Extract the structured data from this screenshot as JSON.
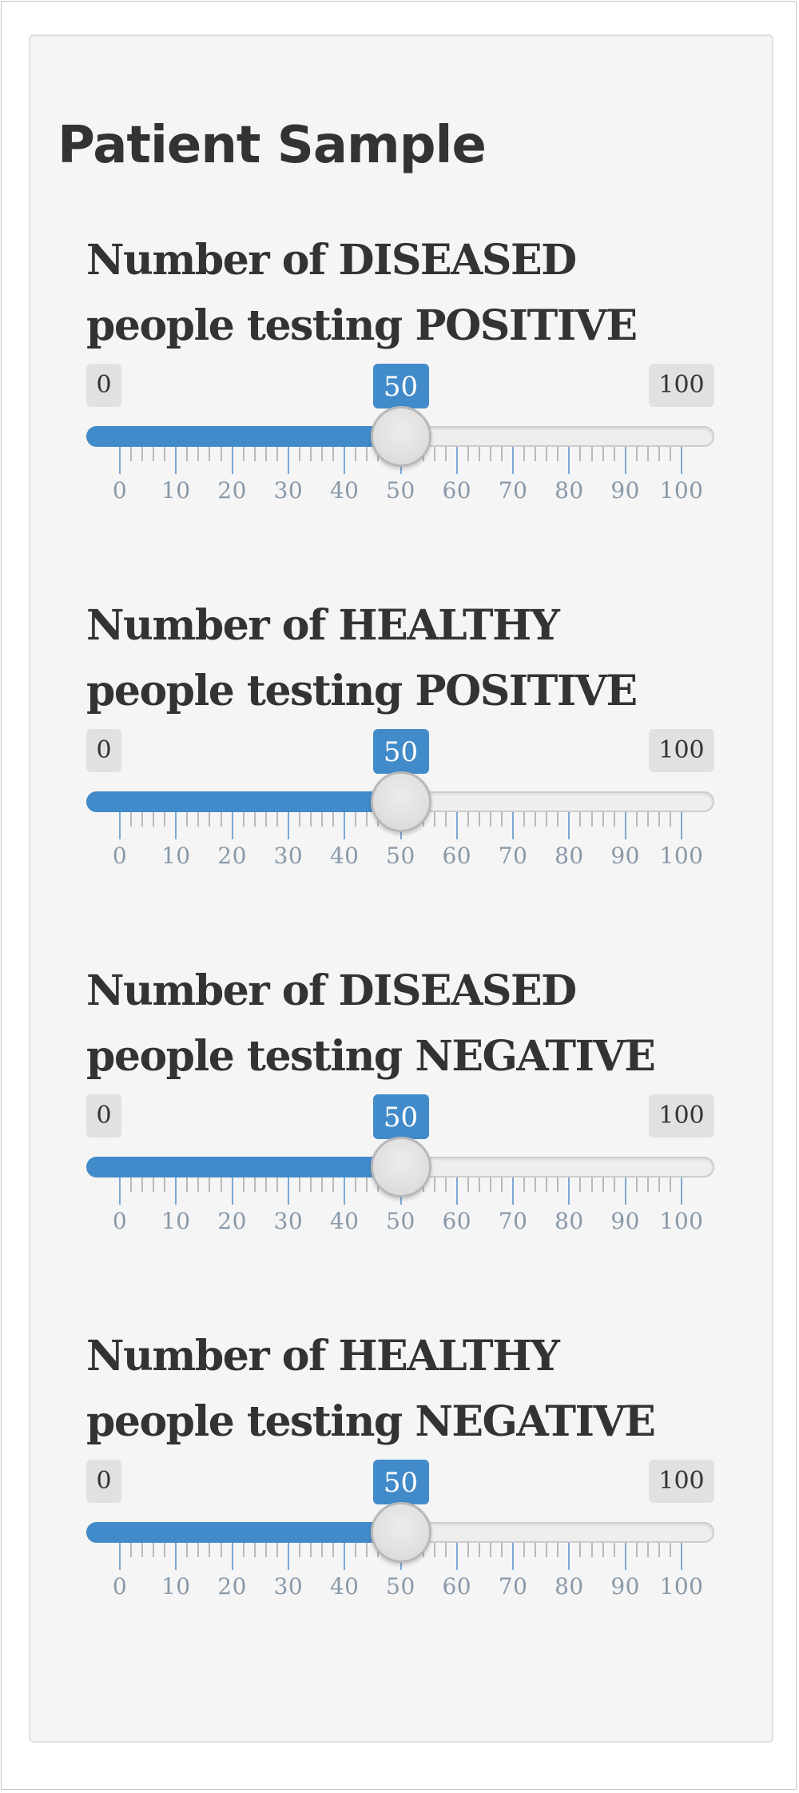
{
  "panel": {
    "title": "Patient Sample"
  },
  "sliders": [
    {
      "label_line1": "Number of DISEASED",
      "label_line2": "people testing POSITIVE",
      "min": 0,
      "max": 100,
      "min_label": "0",
      "max_label": "100",
      "value": 50,
      "value_label": "50",
      "step_major": 10,
      "step_minor": 2
    },
    {
      "label_line1": "Number of HEALTHY",
      "label_line2": "people testing POSITIVE",
      "min": 0,
      "max": 100,
      "min_label": "0",
      "max_label": "100",
      "value": 50,
      "value_label": "50",
      "step_major": 10,
      "step_minor": 2
    },
    {
      "label_line1": "Number of DISEASED",
      "label_line2": "people testing NEGATIVE",
      "min": 0,
      "max": 100,
      "min_label": "0",
      "max_label": "100",
      "value": 50,
      "value_label": "50",
      "step_major": 10,
      "step_minor": 2
    },
    {
      "label_line1": "Number of HEALTHY",
      "label_line2": "people testing NEGATIVE",
      "min": 0,
      "max": 100,
      "min_label": "0",
      "max_label": "100",
      "value": 50,
      "value_label": "50",
      "step_major": 10,
      "step_minor": 2
    }
  ],
  "tick_labels": [
    "0",
    "10",
    "20",
    "30",
    "40",
    "50",
    "60",
    "70",
    "80",
    "90",
    "100"
  ],
  "colors": {
    "accent": "#428bca",
    "panel_background": "#f5f5f5",
    "text": "#333333",
    "tick_label": "#8899aa"
  }
}
